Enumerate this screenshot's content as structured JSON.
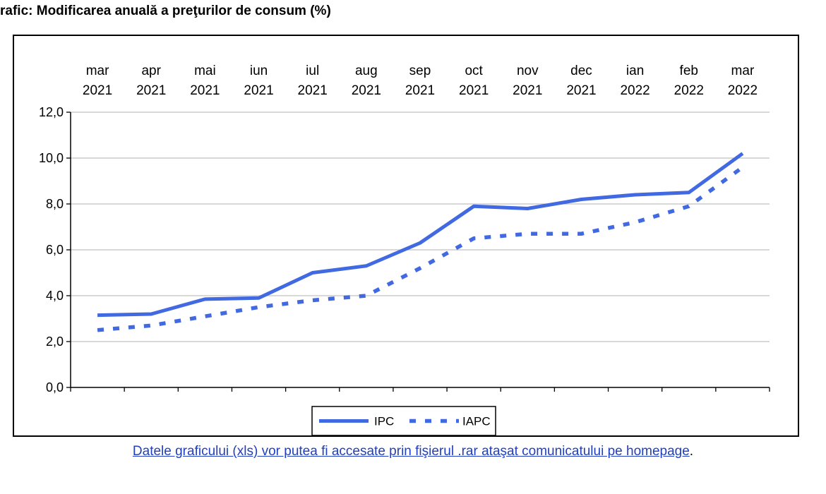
{
  "title": "rafic: Modificarea anuală a preţurilor de consum (%)",
  "footnote": {
    "link_text": "Datele graficului (xls) vor putea fi accesate prin fişierul .rar  ataşat comunicatului pe homepage",
    "trailing": "."
  },
  "chart_data": {
    "type": "line",
    "title": "",
    "xlabel": "",
    "ylabel": "",
    "x_position": "top",
    "categories": [
      {
        "month": "mar",
        "year": "2021"
      },
      {
        "month": "apr",
        "year": "2021"
      },
      {
        "month": "mai",
        "year": "2021"
      },
      {
        "month": "iun",
        "year": "2021"
      },
      {
        "month": "iul",
        "year": "2021"
      },
      {
        "month": "aug",
        "year": "2021"
      },
      {
        "month": "sep",
        "year": "2021"
      },
      {
        "month": "oct",
        "year": "2021"
      },
      {
        "month": "nov",
        "year": "2021"
      },
      {
        "month": "dec",
        "year": "2021"
      },
      {
        "month": "ian",
        "year": "2022"
      },
      {
        "month": "feb",
        "year": "2022"
      },
      {
        "month": "mar",
        "year": "2022"
      }
    ],
    "ylim": [
      0,
      12
    ],
    "yticks": [
      "0,0",
      "2,0",
      "4,0",
      "6,0",
      "8,0",
      "10,0",
      "12,0"
    ],
    "grid": true,
    "legend_position": "bottom-center",
    "series": [
      {
        "name": "IPC",
        "style": "solid",
        "color": "#4169e1",
        "values": [
          3.15,
          3.2,
          3.85,
          3.9,
          5.0,
          5.3,
          6.3,
          7.9,
          7.8,
          8.2,
          8.4,
          8.5,
          10.2
        ]
      },
      {
        "name": "IAPC",
        "style": "dotted",
        "color": "#4169e1",
        "values": [
          2.5,
          2.7,
          3.1,
          3.5,
          3.8,
          4.0,
          5.2,
          6.5,
          6.7,
          6.7,
          7.2,
          7.9,
          9.6
        ]
      }
    ]
  }
}
